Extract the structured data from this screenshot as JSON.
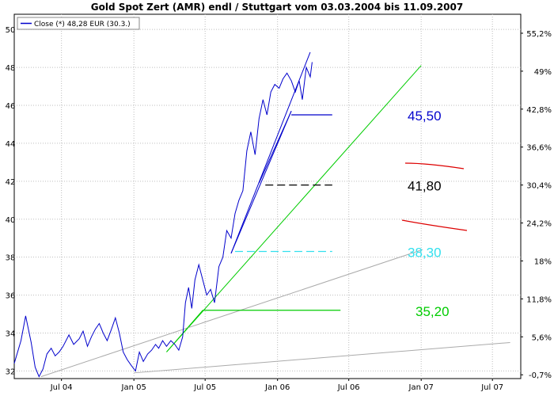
{
  "chart_data": {
    "type": "line",
    "title": "Gold Spot Zert (AMR) endl / Stuttgart vom 03.03.2004  bis 11.09.2007",
    "legend": {
      "label": "Close (*) 48,28 EUR (30.3.)",
      "placement": "top-left"
    },
    "colors": {
      "price": "#0000cc",
      "trend": "#00cc00",
      "support": "#aaaaaa",
      "level_blue": "#0000cc",
      "level_black": "#000000",
      "level_cyan": "#33e0ee",
      "level_green": "#00cc00",
      "red_mark": "#dd0000"
    },
    "grid": true,
    "x_range": [
      "2004-03-03",
      "2007-09-11"
    ],
    "x_ticks": [
      {
        "date": "2004-07-01",
        "label": "Jul 04"
      },
      {
        "date": "2005-01-01",
        "label": "Jan 05"
      },
      {
        "date": "2005-07-01",
        "label": "Jul 05"
      },
      {
        "date": "2006-01-01",
        "label": "Jan 06"
      },
      {
        "date": "2006-07-01",
        "label": "Jul 06"
      },
      {
        "date": "2007-01-01",
        "label": "Jan 07"
      },
      {
        "date": "2007-07-01",
        "label": "Jul 07"
      }
    ],
    "ylim": [
      31.6,
      50.8
    ],
    "y_ticks_left": [
      32,
      34,
      36,
      38,
      40,
      42,
      44,
      46,
      48,
      50
    ],
    "y_ticks_right": [
      {
        "value": 31.8,
        "label": "-0,7%"
      },
      {
        "value": 33.8,
        "label": "5,6%"
      },
      {
        "value": 35.8,
        "label": "11,8%"
      },
      {
        "value": 37.8,
        "label": "18%"
      },
      {
        "value": 39.8,
        "label": "24,2%"
      },
      {
        "value": 41.8,
        "label": "30,4%"
      },
      {
        "value": 43.8,
        "label": "36,6%"
      },
      {
        "value": 45.8,
        "label": "42,8%"
      },
      {
        "value": 47.8,
        "label": "49%"
      },
      {
        "value": 49.8,
        "label": "55,2%"
      }
    ],
    "series": [
      {
        "name": "Close (*) 48,28 EUR (30.3.)",
        "x": [
          "2004-03-03",
          "2004-03-20",
          "2004-04-01",
          "2004-04-15",
          "2004-04-25",
          "2004-05-05",
          "2004-05-15",
          "2004-05-25",
          "2004-06-05",
          "2004-06-15",
          "2004-06-25",
          "2004-07-05",
          "2004-07-20",
          "2004-08-01",
          "2004-08-15",
          "2004-08-25",
          "2004-09-05",
          "2004-09-15",
          "2004-09-25",
          "2004-10-05",
          "2004-10-15",
          "2004-10-25",
          "2004-11-05",
          "2004-11-15",
          "2004-11-25",
          "2004-12-05",
          "2004-12-15",
          "2004-12-25",
          "2005-01-05",
          "2005-01-15",
          "2005-01-25",
          "2005-02-05",
          "2005-02-15",
          "2005-02-25",
          "2005-03-05",
          "2005-03-15",
          "2005-03-25",
          "2005-04-05",
          "2005-04-15",
          "2005-04-25",
          "2005-05-05",
          "2005-05-12",
          "2005-05-20",
          "2005-05-28",
          "2005-06-05",
          "2005-06-15",
          "2005-06-25",
          "2005-07-05",
          "2005-07-15",
          "2005-07-25",
          "2005-08-05",
          "2005-08-15",
          "2005-08-25",
          "2005-09-05",
          "2005-09-15",
          "2005-09-25",
          "2005-10-05",
          "2005-10-15",
          "2005-10-25",
          "2005-11-05",
          "2005-11-15",
          "2005-11-25",
          "2005-12-05",
          "2005-12-15",
          "2005-12-25",
          "2006-01-05",
          "2006-01-15",
          "2006-01-25",
          "2006-02-05",
          "2006-02-15",
          "2006-02-25",
          "2006-03-05",
          "2006-03-15",
          "2006-03-25",
          "2006-03-30"
        ],
        "values": [
          32.4,
          33.6,
          34.9,
          33.5,
          32.2,
          31.7,
          32.1,
          32.9,
          33.2,
          32.8,
          33.0,
          33.3,
          33.9,
          33.4,
          33.7,
          34.1,
          33.3,
          33.8,
          34.2,
          34.5,
          34.0,
          33.6,
          34.2,
          34.8,
          34.0,
          33.0,
          32.6,
          32.3,
          32.0,
          33.0,
          32.5,
          32.9,
          33.1,
          33.4,
          33.2,
          33.6,
          33.3,
          33.6,
          33.4,
          33.1,
          33.8,
          35.6,
          36.4,
          35.3,
          36.8,
          37.6,
          36.8,
          36.0,
          36.3,
          35.6,
          37.5,
          38.0,
          39.4,
          39.0,
          40.3,
          41.0,
          41.5,
          43.6,
          44.6,
          43.4,
          45.3,
          46.3,
          45.5,
          46.7,
          47.1,
          46.9,
          47.4,
          47.7,
          47.3,
          46.7,
          47.3,
          46.3,
          48.0,
          47.5,
          48.28
        ]
      }
    ],
    "trendlines": [
      {
        "name": "green-trend",
        "from": [
          "2005-03-25",
          33.0
        ],
        "to": [
          "2007-01-01",
          48.1
        ]
      },
      {
        "name": "gray-support-1",
        "from": [
          "2004-05-10",
          31.7
        ],
        "to": [
          "2007-01-05",
          38.4
        ]
      },
      {
        "name": "gray-support-2",
        "from": [
          "2005-01-01",
          31.9
        ],
        "to": [
          "2007-08-15",
          33.5
        ]
      },
      {
        "name": "green-support-short",
        "from": [
          "2005-03-25",
          33.0
        ],
        "to": [
          "2005-06-25",
          35.2
        ]
      },
      {
        "name": "blue-trend-1",
        "from": [
          "2005-09-05",
          38.2
        ],
        "to": [
          "2006-03-25",
          48.8
        ]
      },
      {
        "name": "blue-trend-2",
        "from": [
          "2005-09-05",
          38.2
        ],
        "to": [
          "2006-02-05",
          45.7
        ]
      },
      {
        "name": "blue-trend-3",
        "from": [
          "2005-11-15",
          41.9
        ],
        "to": [
          "2006-02-05",
          45.7
        ]
      }
    ],
    "levels": [
      {
        "label": "45,50",
        "value": 45.5,
        "from": "2006-02-05",
        "to": "2006-05-20",
        "style": "solid",
        "color": "#0000cc"
      },
      {
        "label": "41,80",
        "value": 41.8,
        "from": "2005-12-01",
        "to": "2006-05-20",
        "style": "dashed",
        "color": "#000000"
      },
      {
        "label": "38,30",
        "value": 38.3,
        "from": "2005-09-15",
        "to": "2006-05-20",
        "style": "dashed",
        "color": "#33e0ee"
      },
      {
        "label": "35,20",
        "value": 35.2,
        "from": "2005-06-25",
        "to": "2006-06-10",
        "style": "solid",
        "color": "#00cc00"
      }
    ]
  }
}
